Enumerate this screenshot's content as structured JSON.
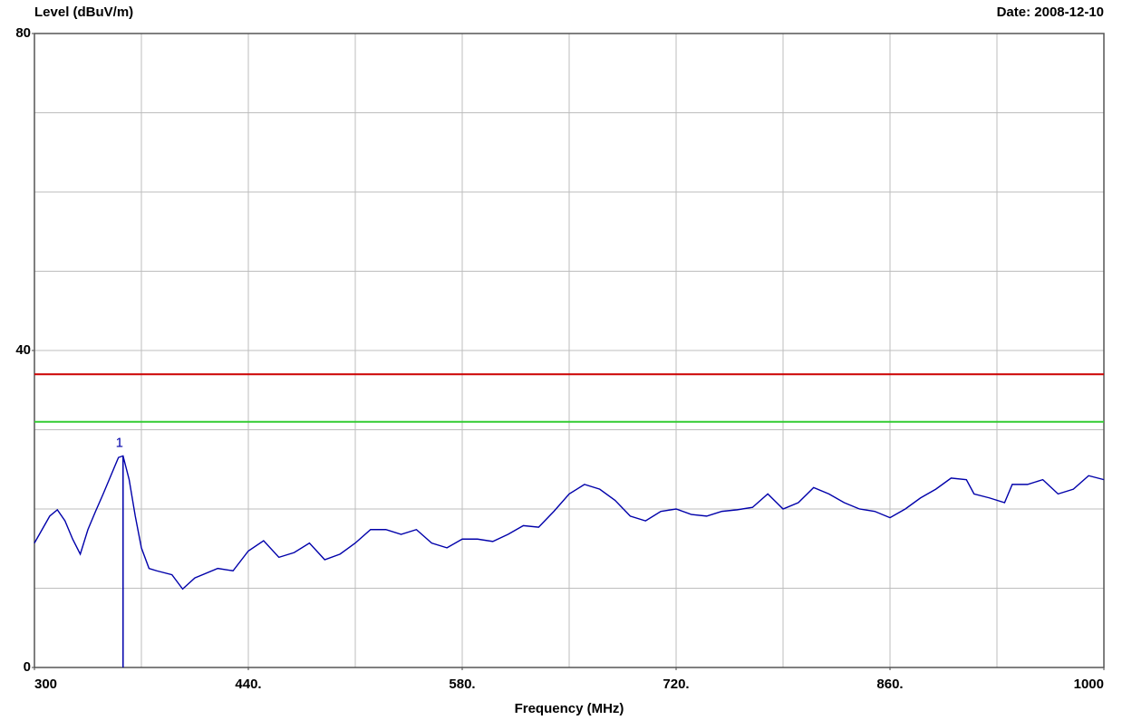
{
  "chart_data": {
    "type": "line",
    "title": "Level (dBuV/m)",
    "date": "Date: 2008-12-10",
    "xlabel": "Frequency (MHz)",
    "xlim": [
      300,
      1000
    ],
    "ylim": [
      0,
      80
    ],
    "xticks": [
      300,
      {
        "value": 440,
        "label": "440."
      },
      {
        "value": 580,
        "label": "580."
      },
      {
        "value": 720,
        "label": "720."
      },
      {
        "value": 860,
        "label": "860."
      },
      1000
    ],
    "yticks": [
      0,
      40,
      80
    ],
    "xgrid": [
      370,
      440,
      510,
      580,
      650,
      720,
      790,
      860,
      930
    ],
    "ygrid": [
      10,
      20,
      30,
      40,
      50,
      60,
      70
    ],
    "x": [
      300,
      310,
      315,
      320,
      325,
      330,
      335,
      340,
      345,
      350,
      355,
      358,
      362,
      366,
      370,
      375,
      380,
      390,
      397,
      405,
      420,
      430,
      440,
      450,
      460,
      470,
      480,
      490,
      500,
      510,
      520,
      530,
      540,
      550,
      560,
      570,
      580,
      590,
      600,
      610,
      620,
      630,
      640,
      650,
      660,
      670,
      680,
      690,
      700,
      710,
      720,
      730,
      740,
      750,
      760,
      770,
      780,
      790,
      800,
      810,
      820,
      830,
      840,
      850,
      860,
      870,
      880,
      890,
      900,
      910,
      915,
      925,
      935,
      940,
      950,
      960,
      970,
      980,
      990,
      1000
    ],
    "series": [
      {
        "color": "#0000aa",
        "values": [
          15.7,
          19.1,
          19.9,
          18.5,
          16.2,
          14.3,
          17.4,
          19.7,
          21.9,
          24.2,
          26.5,
          26.7,
          23.7,
          19.1,
          15.1,
          12.5,
          12.2,
          11.7,
          9.9,
          11.3,
          12.5,
          12.2,
          14.7,
          16.0,
          13.9,
          14.5,
          15.7,
          13.6,
          14.3,
          15.7,
          17.4,
          17.4,
          16.8,
          17.4,
          15.7,
          15.1,
          16.2,
          16.2,
          15.9,
          16.8,
          17.9,
          17.7,
          19.7,
          21.9,
          23.1,
          22.5,
          21.1,
          19.1,
          18.5,
          19.7,
          20.0,
          19.3,
          19.1,
          19.7,
          19.9,
          20.2,
          21.9,
          20.0,
          20.8,
          22.7,
          21.9,
          20.8,
          20.0,
          19.7,
          18.9,
          20.0,
          21.4,
          22.5,
          23.9,
          23.7,
          21.9,
          21.4,
          20.8,
          23.1,
          23.1,
          23.7,
          21.9,
          22.5,
          24.2,
          23.7
        ]
      }
    ],
    "hlines": [
      {
        "value": 37,
        "color": "#cc0000"
      },
      {
        "value": 31,
        "color": "#33cc33"
      }
    ],
    "markers": [
      {
        "label": "1",
        "x": 358,
        "y": 26.7,
        "color": "#0000aa"
      }
    ]
  }
}
